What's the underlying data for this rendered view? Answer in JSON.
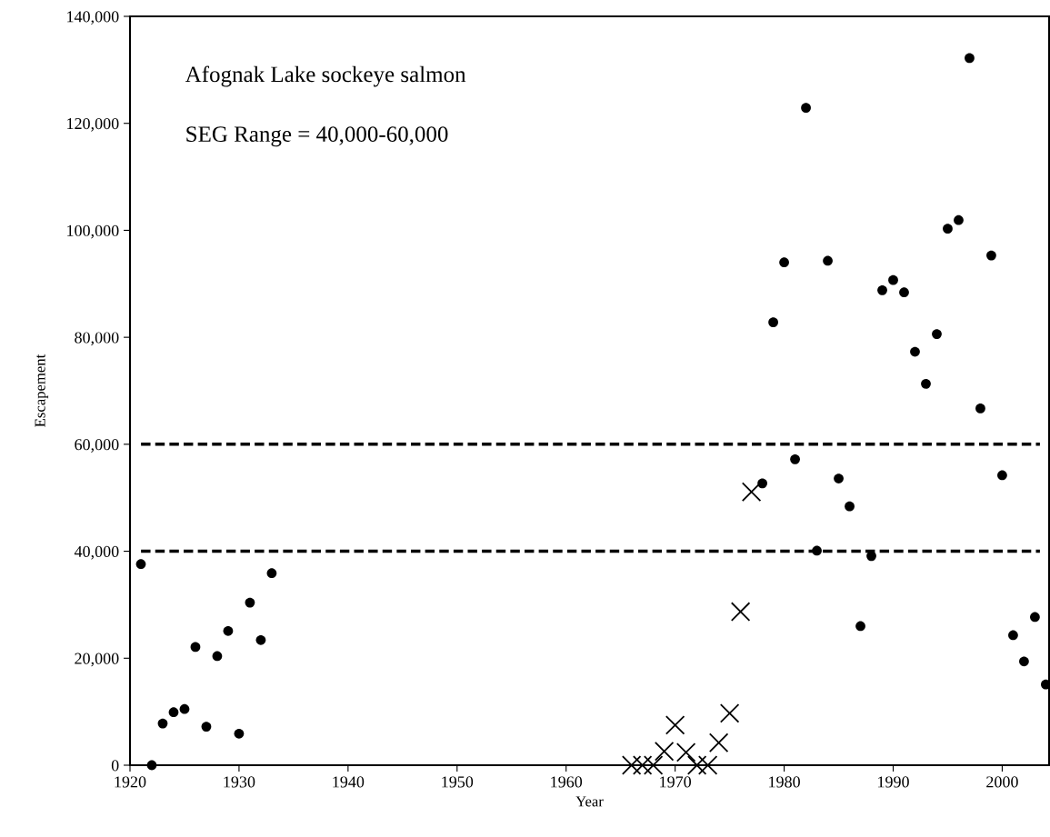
{
  "chart_data": {
    "type": "scatter",
    "xlabel": "Year",
    "ylabel": "Escapement",
    "annotations": [
      "Afognak Lake sockeye salmon",
      "SEG Range = 40,000-60,000"
    ],
    "series": [
      {
        "color": "#000000",
        "marker": "circle",
        "x": [
          1921,
          1922,
          1923,
          1924,
          1925,
          1926,
          1927,
          1928,
          1929,
          1930,
          1931,
          1932,
          1933,
          1978,
          1979,
          1980,
          1981,
          1982,
          1983,
          1984,
          1985,
          1986,
          1987,
          1988,
          1989,
          1990,
          1991,
          1992,
          1993,
          1994,
          1995,
          1996,
          1997,
          1998,
          1999,
          2000,
          2001,
          2002,
          2003,
          2004
        ],
        "values": [
          37600,
          0,
          7800,
          9900,
          10500,
          22100,
          7200,
          20400,
          25100,
          5900,
          30400,
          23400,
          35900,
          52700,
          82800,
          94000,
          57200,
          122900,
          40100,
          94300,
          53600,
          48400,
          26000,
          39100,
          88800,
          90700,
          88400,
          77300,
          71300,
          80600,
          100300,
          101900,
          132200,
          66700,
          95300,
          54200,
          24300,
          19400,
          27700,
          15100
        ]
      },
      {
        "color": "#000000",
        "marker": "cross",
        "x": [
          1966,
          1967,
          1968,
          1969,
          1970,
          1971,
          1972,
          1973,
          1974,
          1975,
          1976,
          1977
        ],
        "values": [
          0,
          0,
          0,
          2600,
          7500,
          2400,
          0,
          0,
          4200,
          9700,
          28700,
          51100
        ]
      }
    ],
    "ref_lines": [
      {
        "axis": "y",
        "value": 40000,
        "color": "#000000",
        "line_style": "dashed"
      },
      {
        "axis": "y",
        "value": 60000,
        "color": "#000000",
        "line_style": "dashed"
      }
    ],
    "xlim": [
      1920,
      2004.3
    ],
    "xticks": [
      1920,
      1930,
      1940,
      1950,
      1960,
      1970,
      1980,
      1990,
      2000
    ],
    "ylim": [
      0,
      140000
    ],
    "yticks": [
      {
        "value": 0,
        "label": "0"
      },
      {
        "value": 20000,
        "label": "20,000"
      },
      {
        "value": 40000,
        "label": "40,000"
      },
      {
        "value": 60000,
        "label": "60,000"
      },
      {
        "value": 80000,
        "label": "80,000"
      },
      {
        "value": 100000,
        "label": "100,000"
      },
      {
        "value": 120000,
        "label": "120,000"
      },
      {
        "value": 140000,
        "label": "140,000"
      }
    ],
    "grid": false,
    "legend": false
  }
}
